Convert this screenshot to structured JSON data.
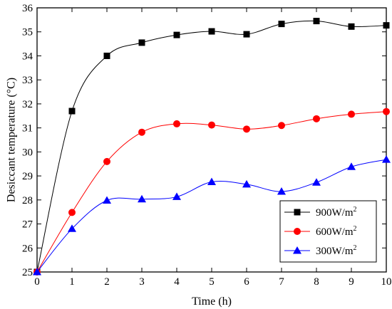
{
  "chart_data": {
    "type": "line",
    "xlabel": "Time (h)",
    "ylabel": "Desiccant temperature (°C)",
    "xlim": [
      0,
      10
    ],
    "ylim": [
      25,
      36
    ],
    "xticks": [
      "0",
      "1",
      "2",
      "3",
      "4",
      "5",
      "6",
      "7",
      "8",
      "9",
      "10"
    ],
    "yticks": [
      "25",
      "26",
      "27",
      "28",
      "29",
      "30",
      "31",
      "32",
      "33",
      "34",
      "35",
      "36"
    ],
    "grid": false,
    "legend_position": "bottom-right",
    "x": [
      0,
      1,
      2,
      3,
      4,
      5,
      6,
      7,
      8,
      9,
      10
    ],
    "series": [
      {
        "name": "900W/m",
        "name_sup": "2",
        "marker": "square",
        "color": "#000000",
        "values": [
          25.0,
          31.7,
          34.0,
          34.55,
          34.87,
          35.02,
          34.9,
          35.33,
          35.45,
          35.22,
          35.27
        ]
      },
      {
        "name": "600W/m",
        "name_sup": "2",
        "marker": "circle",
        "color": "#ff0000",
        "values": [
          25.0,
          27.48,
          29.6,
          30.82,
          31.17,
          31.12,
          30.95,
          31.1,
          31.38,
          31.57,
          31.68
        ]
      },
      {
        "name": "300W/m",
        "name_sup": "2",
        "marker": "triangle",
        "color": "#0000ff",
        "values": [
          25.0,
          26.8,
          27.98,
          28.03,
          28.13,
          28.75,
          28.65,
          28.35,
          28.73,
          29.38,
          29.68
        ]
      }
    ]
  }
}
